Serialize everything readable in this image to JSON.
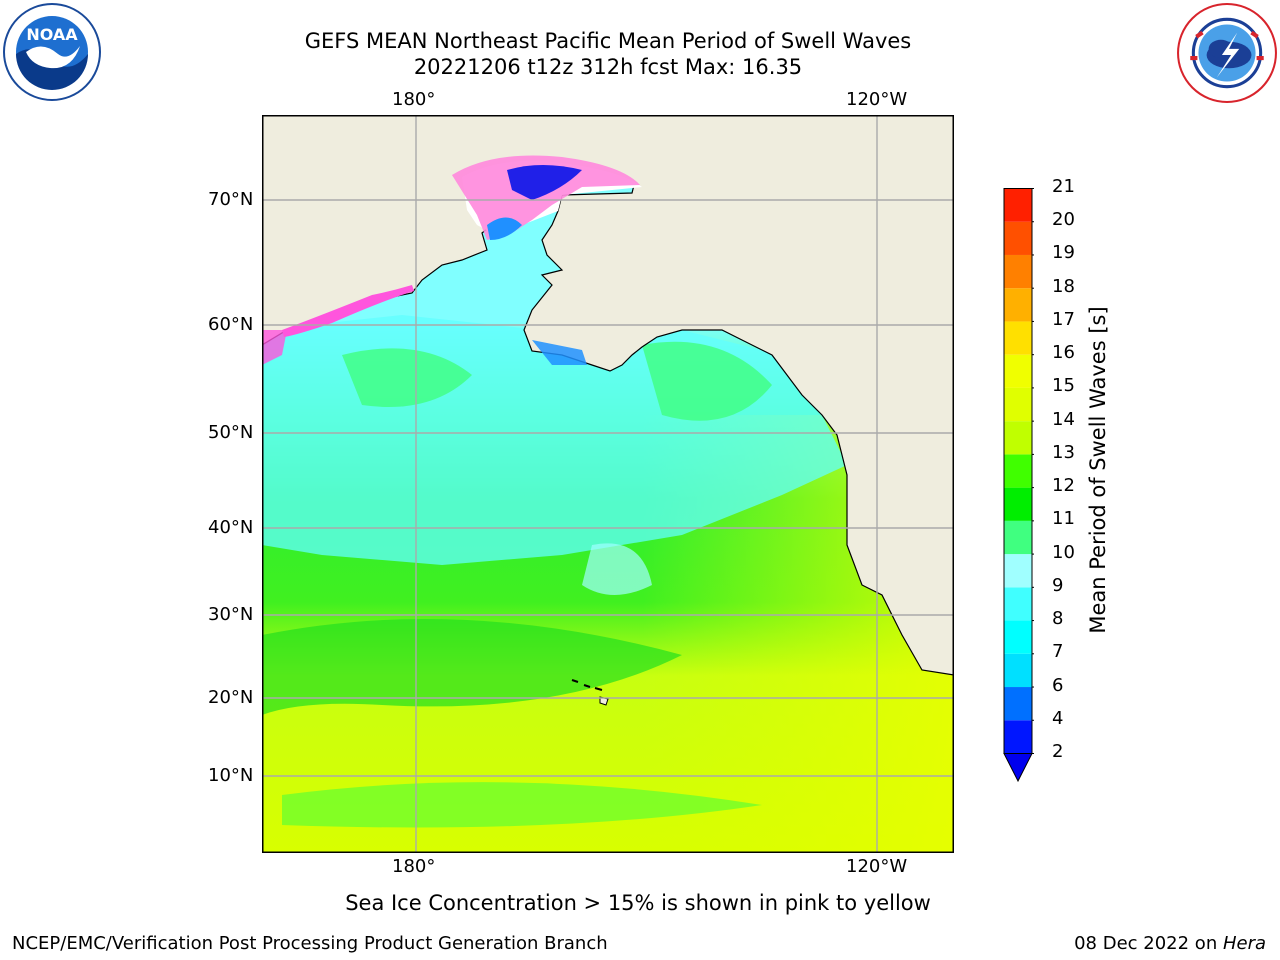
{
  "title": {
    "line1": "GEFS MEAN Northeast Pacific Mean Period of Swell Waves",
    "line2": "20221206 t12z 312h fcst   Max: 16.35"
  },
  "map": {
    "top_lon_labels": [
      "180°",
      "120°W"
    ],
    "bottom_lon_labels": [
      "180°",
      "120°W"
    ],
    "lat_labels": [
      "70°N",
      "60°N",
      "50°N",
      "40°N",
      "30°N",
      "20°N",
      "10°N"
    ]
  },
  "colorbar": {
    "label": "Mean Period of Swell Waves [s]",
    "ticks": [
      "2",
      "4",
      "6",
      "7",
      "8",
      "9",
      "10",
      "11",
      "12",
      "13",
      "14",
      "15",
      "16",
      "17",
      "18",
      "19",
      "20",
      "21"
    ],
    "colors": [
      "#0016ff",
      "#0070ff",
      "#00e0ff",
      "#00ffff",
      "#40ffff",
      "#a0ffff",
      "#40ff80",
      "#00ee00",
      "#40ff00",
      "#c0ff00",
      "#e0ff00",
      "#f0ff00",
      "#ffe000",
      "#ffb000",
      "#ff8000",
      "#ff5000",
      "#ff2000"
    ],
    "extend_color": "#0000ee"
  },
  "footnote": "Sea Ice Concentration > 15% is shown in pink to yellow",
  "credit_left": "NCEP/EMC/Verification Post Processing Product Generation Branch",
  "credit_date": "08 Dec 2022 on ",
  "credit_machine": "Hera"
}
